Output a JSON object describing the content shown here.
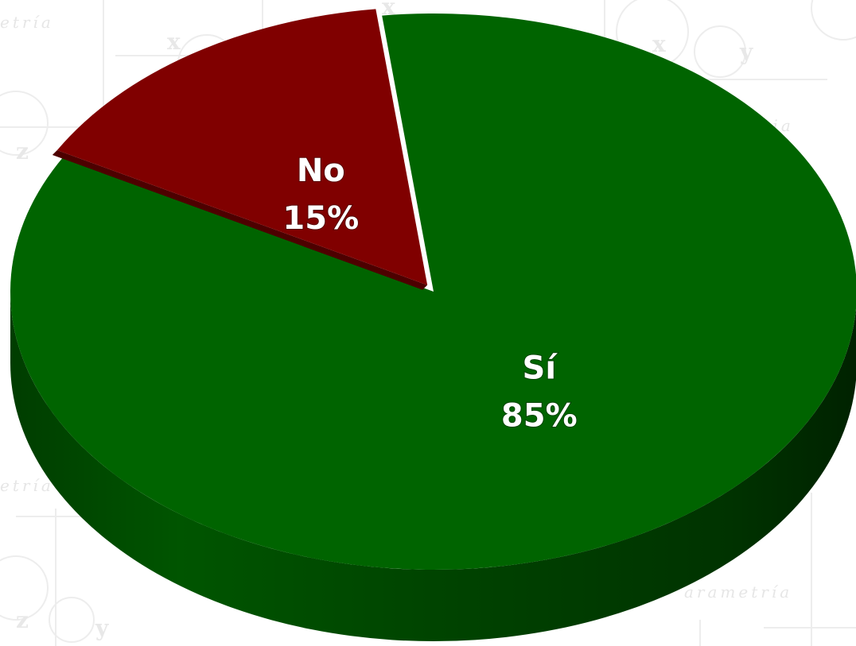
{
  "chart_data": {
    "type": "pie",
    "title": "",
    "style": "3d",
    "categories": [
      "No",
      "Sí"
    ],
    "values": [
      15,
      85
    ],
    "unit": "%",
    "labels": [
      "No\n15%",
      "Sí\n85%"
    ],
    "colors": {
      "No": "#800000",
      "Sí": "#006400"
    },
    "legend": "none"
  },
  "watermark": {
    "text": [
      "etría",
      "etría",
      "etria",
      "arametría"
    ],
    "glyphs": [
      "x",
      "x",
      "y",
      "z",
      "y",
      "z",
      "x"
    ]
  }
}
